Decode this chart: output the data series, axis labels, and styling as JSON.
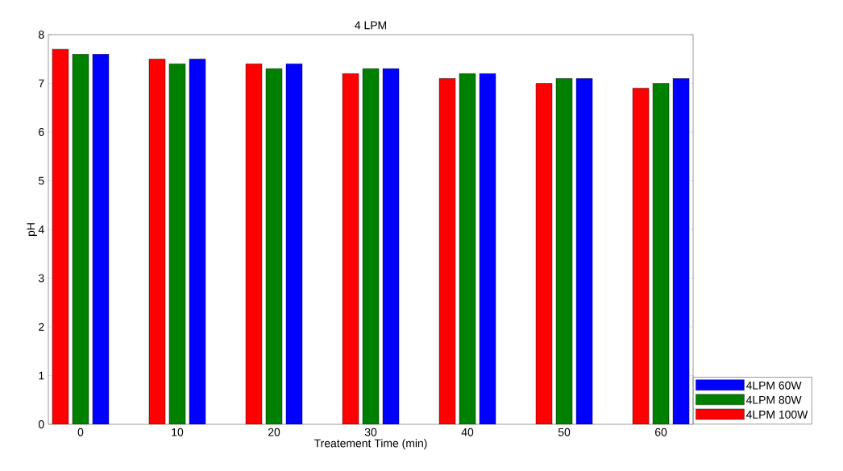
{
  "chart_data": {
    "type": "bar",
    "title": "4 LPM",
    "xlabel": "Treatement Time (min)",
    "ylabel": "pH",
    "categories": [
      "0",
      "10",
      "20",
      "30",
      "40",
      "50",
      "60"
    ],
    "series": [
      {
        "name": "4LPM 100W",
        "color": "#ff0000",
        "values": [
          7.7,
          7.5,
          7.4,
          7.2,
          7.1,
          7.0,
          6.9
        ]
      },
      {
        "name": "4LPM 80W",
        "color": "#008000",
        "values": [
          7.6,
          7.4,
          7.3,
          7.3,
          7.2,
          7.1,
          7.0
        ]
      },
      {
        "name": "4LPM 60W",
        "color": "#0000ff",
        "values": [
          7.6,
          7.5,
          7.4,
          7.3,
          7.2,
          7.1,
          7.1
        ]
      }
    ],
    "ylim": [
      0,
      8
    ],
    "yticks": [
      0,
      1,
      2,
      3,
      4,
      5,
      6,
      7,
      8
    ],
    "legend": "bottom right"
  }
}
